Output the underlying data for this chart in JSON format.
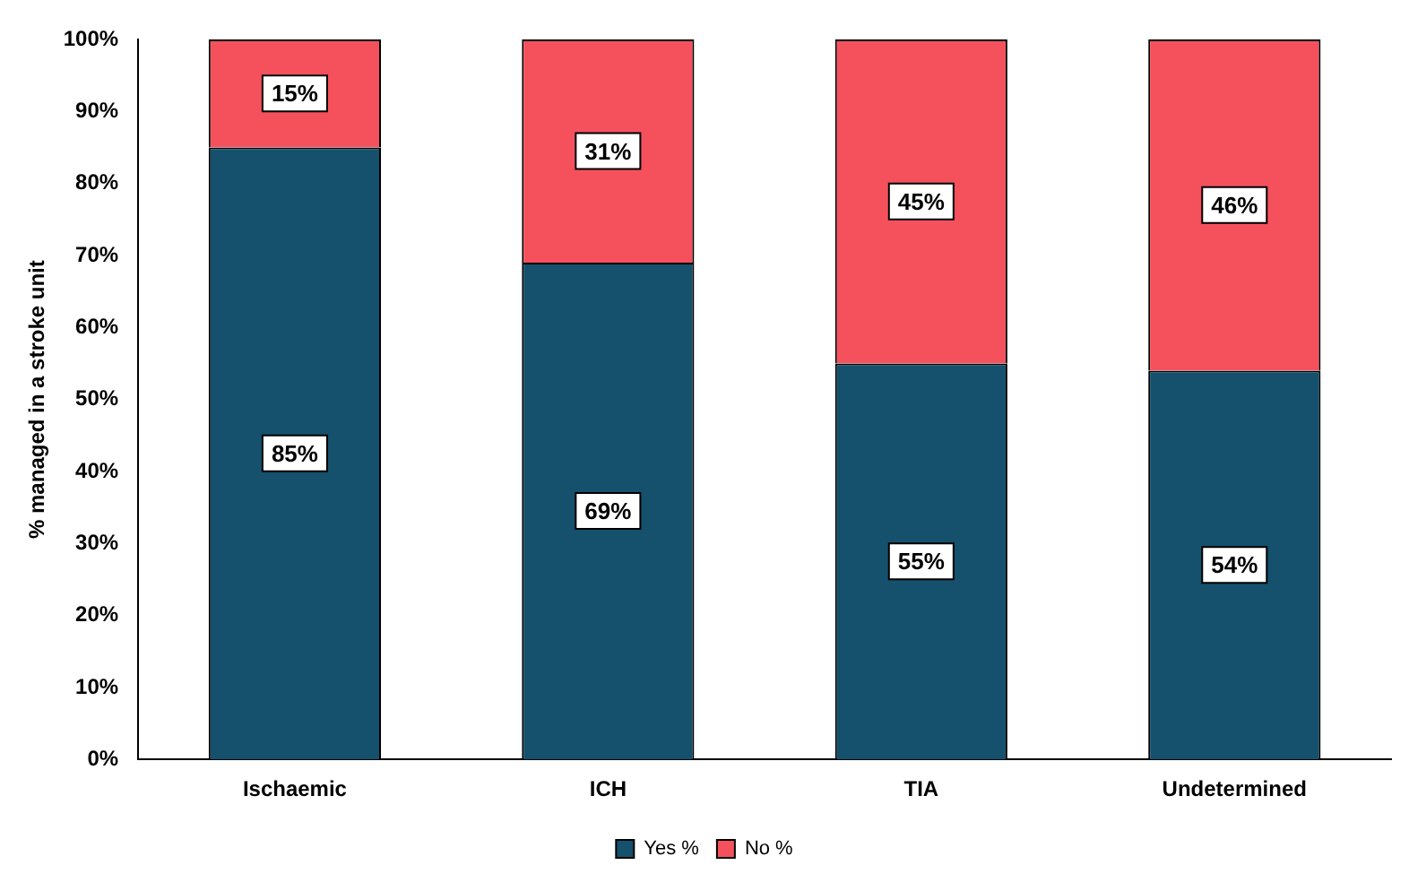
{
  "chart_data": {
    "type": "bar",
    "stacked": true,
    "ylabel": "% managed in a stroke unit",
    "categories": [
      "Ischaemic",
      "ICH",
      "TIA",
      "Undetermined"
    ],
    "series": [
      {
        "name": "Yes %",
        "color": "#15506c",
        "values": [
          85,
          69,
          55,
          54
        ],
        "value_labels": [
          "85%",
          "69%",
          "55%",
          "54%"
        ]
      },
      {
        "name": "No %",
        "color": "#f5515d",
        "values": [
          15,
          31,
          45,
          46
        ],
        "value_labels": [
          "15%",
          "31%",
          "45%",
          "46%"
        ]
      }
    ],
    "ylim": [
      0,
      100
    ],
    "yticks": [
      {
        "value": 0,
        "label": "0%"
      },
      {
        "value": 10,
        "label": "10%"
      },
      {
        "value": 20,
        "label": "20%"
      },
      {
        "value": 30,
        "label": "30%"
      },
      {
        "value": 40,
        "label": "40%"
      },
      {
        "value": 50,
        "label": "50%"
      },
      {
        "value": 60,
        "label": "60%"
      },
      {
        "value": 70,
        "label": "70%"
      },
      {
        "value": 80,
        "label": "80%"
      },
      {
        "value": 90,
        "label": "90%"
      },
      {
        "value": 100,
        "label": "100%"
      }
    ],
    "grid": false,
    "legend": "bottom"
  }
}
